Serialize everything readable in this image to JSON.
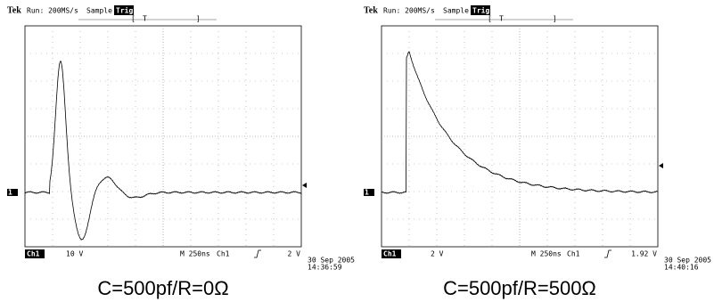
{
  "panels": [
    {
      "brand": "Tek",
      "status": "Run: 200MS/s",
      "mode": "Sample",
      "trigger": "Trig?",
      "trigger_bar": "T",
      "channel_marker": "1",
      "footer": {
        "channel": "Ch1",
        "scale": "10 V",
        "timebase": "M 250ns",
        "trigger_source": "Ch1",
        "trigger_level": "2 V"
      },
      "date": "30 Sep 2005",
      "time": "14:36:59",
      "caption": "C=500pf/R=0Ω"
    },
    {
      "brand": "Tek",
      "status": "Run: 200MS/s",
      "mode": "Sample",
      "trigger": "Trig?",
      "trigger_bar": "T",
      "channel_marker": "1",
      "footer": {
        "channel": "Ch1",
        "scale": "2 V",
        "timebase": "M 250ns",
        "trigger_source": "Ch1",
        "trigger_level": "1.92 V"
      },
      "date": "30 Sep 2005",
      "time": "14:40:16",
      "caption": "C=500pf/R=500Ω"
    }
  ]
}
